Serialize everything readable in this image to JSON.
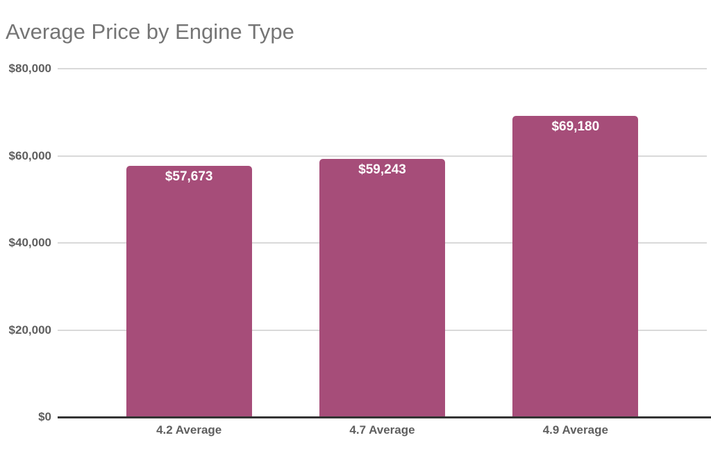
{
  "chart_data": {
    "type": "bar",
    "title": "Average Price by Engine Type",
    "categories": [
      "4.2 Average",
      "4.7 Average",
      "4.9 Average"
    ],
    "values": [
      57673,
      59243,
      69180
    ],
    "value_labels": [
      "$57,673",
      "$59,243",
      "$69,180"
    ],
    "xlabel": "",
    "ylabel": "",
    "ylim": [
      0,
      80000
    ],
    "yticks": [
      {
        "value": 0,
        "label": "$0"
      },
      {
        "value": 20000,
        "label": "$20,000"
      },
      {
        "value": 40000,
        "label": "$40,000"
      },
      {
        "value": 60000,
        "label": "$60,000"
      },
      {
        "value": 80000,
        "label": "$80,000"
      }
    ],
    "grid": true,
    "legend": "none",
    "colors": {
      "bar": "#A64D79",
      "title": "#757575",
      "axis_label": "#5f5f5f",
      "gridline": "#d9d9d9",
      "baseline": "#333333",
      "data_label": "#ffffff",
      "background": "#ffffff"
    }
  }
}
